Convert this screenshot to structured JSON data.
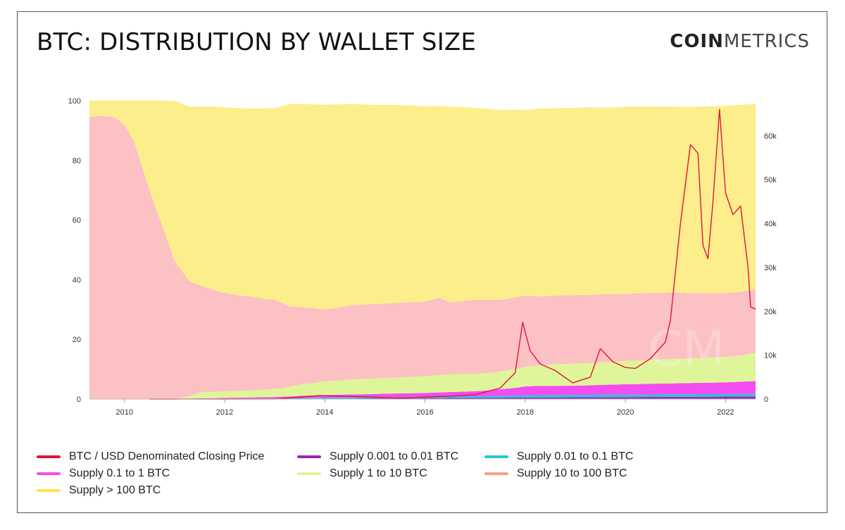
{
  "header": {
    "title": "BTC: DISTRIBUTION BY WALLET SIZE",
    "logo_bold": "COIN",
    "logo_light": "METRICS"
  },
  "chart_data": {
    "type": "area",
    "title": "BTC: DISTRIBUTION BY WALLET SIZE",
    "xlabel": "",
    "ylabel": "",
    "x_ticks": [
      "2010",
      "2012",
      "2014",
      "2016",
      "2018",
      "2020",
      "2022"
    ],
    "y_left_ticks": [
      0,
      20,
      40,
      60,
      80,
      100
    ],
    "y_right_ticks": [
      "0",
      "10k",
      "20k",
      "30k",
      "40k",
      "50k",
      "60k"
    ],
    "xlim": [
      2009.3,
      2022.6
    ],
    "ylim_left": [
      0,
      100
    ],
    "ylim_right": [
      0,
      68000
    ],
    "x": [
      2009.3,
      2009.5,
      2009.8,
      2010.0,
      2010.2,
      2010.5,
      2010.8,
      2011.0,
      2011.3,
      2011.5,
      2011.8,
      2012.0,
      2012.3,
      2012.5,
      2012.8,
      2013.0,
      2013.3,
      2013.5,
      2013.8,
      2014.0,
      2014.3,
      2014.5,
      2014.8,
      2015.0,
      2015.3,
      2015.5,
      2015.8,
      2016.0,
      2016.3,
      2016.5,
      2016.8,
      2017.0,
      2017.3,
      2017.5,
      2017.8,
      2018.0,
      2018.3,
      2018.5,
      2018.8,
      2019.0,
      2019.3,
      2019.5,
      2019.8,
      2020.0,
      2020.3,
      2020.5,
      2020.8,
      2021.0,
      2021.3,
      2021.5,
      2021.8,
      2022.0,
      2022.3,
      2022.6
    ],
    "series": [
      {
        "name": "Supply 0.001 to 0.01 BTC",
        "color": "#9b27b0",
        "values": [
          0,
          0,
          0,
          0,
          0,
          0,
          0,
          0.01,
          0.02,
          0.03,
          0.04,
          0.05,
          0.06,
          0.07,
          0.08,
          0.09,
          0.1,
          0.12,
          0.14,
          0.16,
          0.18,
          0.2,
          0.22,
          0.24,
          0.26,
          0.28,
          0.3,
          0.32,
          0.34,
          0.36,
          0.38,
          0.4,
          0.42,
          0.44,
          0.46,
          0.5,
          0.52,
          0.54,
          0.56,
          0.58,
          0.6,
          0.62,
          0.64,
          0.66,
          0.68,
          0.7,
          0.72,
          0.74,
          0.76,
          0.78,
          0.8,
          0.82,
          0.84,
          0.86
        ]
      },
      {
        "name": "Supply 0.01 to 0.1 BTC",
        "color": "#26c6da",
        "values": [
          0,
          0,
          0,
          0,
          0,
          0,
          0,
          0.01,
          0.03,
          0.05,
          0.07,
          0.09,
          0.1,
          0.12,
          0.14,
          0.16,
          0.2,
          0.24,
          0.28,
          0.3,
          0.32,
          0.34,
          0.36,
          0.38,
          0.4,
          0.42,
          0.44,
          0.46,
          0.48,
          0.5,
          0.52,
          0.55,
          0.6,
          0.65,
          0.7,
          0.75,
          0.78,
          0.8,
          0.8,
          0.8,
          0.8,
          0.82,
          0.82,
          0.82,
          0.82,
          0.84,
          0.84,
          0.84,
          0.84,
          0.86,
          0.86,
          0.86,
          0.86,
          0.86
        ]
      },
      {
        "name": "Supply 0.1 to 1 BTC",
        "color": "#f34cf0",
        "values": [
          0,
          0,
          0,
          0,
          0,
          0,
          0,
          0.05,
          0.1,
          0.15,
          0.2,
          0.25,
          0.3,
          0.35,
          0.4,
          0.45,
          0.6,
          0.7,
          0.8,
          0.9,
          0.95,
          1.0,
          1.05,
          1.1,
          1.15,
          1.2,
          1.25,
          1.3,
          1.4,
          1.5,
          1.6,
          1.7,
          1.9,
          2.2,
          2.6,
          3.0,
          3.1,
          3.1,
          3.1,
          3.1,
          3.2,
          3.3,
          3.4,
          3.5,
          3.55,
          3.6,
          3.65,
          3.7,
          3.75,
          3.8,
          3.85,
          3.9,
          4.1,
          4.3
        ]
      },
      {
        "name": "Supply 1 to 10 BTC",
        "color": "#dff59a",
        "values": [
          0,
          0,
          0,
          0,
          0,
          0,
          0,
          0.2,
          0.8,
          2.0,
          2.1,
          2.2,
          2.3,
          2.4,
          2.5,
          2.6,
          3.2,
          3.8,
          4.2,
          4.6,
          4.8,
          5.0,
          5.1,
          5.2,
          5.3,
          5.4,
          5.5,
          5.6,
          5.8,
          6.0,
          5.9,
          5.8,
          5.9,
          6.0,
          6.3,
          6.5,
          7.0,
          7.2,
          7.3,
          7.4,
          7.5,
          7.6,
          7.7,
          7.8,
          7.9,
          8.0,
          8.1,
          8.2,
          8.2,
          8.3,
          8.4,
          8.5,
          8.8,
          9.4
        ]
      },
      {
        "name": "Supply 10 to 100 BTC",
        "color": "#fcc1c3",
        "values": [
          94.5,
          95.0,
          94.5,
          92.0,
          86.0,
          70.0,
          56.0,
          46.0,
          38.5,
          36.0,
          34.0,
          33.0,
          32.0,
          31.5,
          30.5,
          30.0,
          27.0,
          26.0,
          25.0,
          24.0,
          24.5,
          24.8,
          25.0,
          25.0,
          25.0,
          25.0,
          25.0,
          25.0,
          26.0,
          24.0,
          24.5,
          24.8,
          24.5,
          24.0,
          24.0,
          24.0,
          23.0,
          23.0,
          23.0,
          23.0,
          22.8,
          22.8,
          22.6,
          22.5,
          22.5,
          22.5,
          22.4,
          22.3,
          22.0,
          21.8,
          21.6,
          21.4,
          21.4,
          21.3
        ]
      },
      {
        "name": "Supply > 100 BTC",
        "color": "#fdee8c",
        "values": [
          5.5,
          5.0,
          5.5,
          8.0,
          14.0,
          30.0,
          44.0,
          53.7,
          58.5,
          59.8,
          61.6,
          62.2,
          62.7,
          63.0,
          63.8,
          64.2,
          67.8,
          68.0,
          68.3,
          68.7,
          68.0,
          67.5,
          67.0,
          66.7,
          66.5,
          66.2,
          65.8,
          65.5,
          64.2,
          65.6,
          64.9,
          64.3,
          63.9,
          63.6,
          62.9,
          62.1,
          63.0,
          62.8,
          62.8,
          62.7,
          62.9,
          62.6,
          62.6,
          62.7,
          62.6,
          62.4,
          62.3,
          62.2,
          62.4,
          62.5,
          62.6,
          62.8,
          62.6,
          62.3
        ]
      }
    ],
    "price_series": {
      "name": "BTC / USD Denominated Closing Price",
      "color": "#e0133f",
      "x": [
        2010.5,
        2011.0,
        2011.5,
        2012.0,
        2013.0,
        2013.9,
        2014.5,
        2015.5,
        2016.5,
        2017.0,
        2017.5,
        2017.8,
        2017.95,
        2018.1,
        2018.3,
        2018.6,
        2018.95,
        2019.3,
        2019.5,
        2019.75,
        2020.0,
        2020.2,
        2020.5,
        2020.8,
        2020.9,
        2021.0,
        2021.1,
        2021.3,
        2021.45,
        2021.55,
        2021.65,
        2021.75,
        2021.88,
        2022.0,
        2022.15,
        2022.3,
        2022.45,
        2022.5,
        2022.6
      ],
      "values": [
        0,
        0,
        15,
        6,
        13,
        800,
        600,
        250,
        650,
        1000,
        2500,
        6000,
        17500,
        11000,
        8000,
        6500,
        3700,
        5000,
        11500,
        8500,
        7200,
        7000,
        9200,
        13000,
        18000,
        29000,
        40000,
        58000,
        56000,
        35000,
        32000,
        45000,
        66000,
        47000,
        42000,
        44000,
        30000,
        21000,
        20500
      ]
    },
    "legend_position": "bottom",
    "grid": false
  },
  "legend": [
    {
      "label": "BTC / USD Denominated Closing Price",
      "color": "#e0133f"
    },
    {
      "label": "Supply 0.001 to 0.01 BTC",
      "color": "#9b27b0"
    },
    {
      "label": "Supply 0.01 to 0.1 BTC",
      "color": "#26c6da"
    },
    {
      "label": "Supply 0.1 to 1 BTC",
      "color": "#f34cf0"
    },
    {
      "label": "Supply 1 to 10 BTC",
      "color": "#dff59a"
    },
    {
      "label": "Supply 10 to 100 BTC",
      "color": "#fc9c8a"
    },
    {
      "label": "Supply > 100 BTC",
      "color": "#fde54a"
    }
  ]
}
